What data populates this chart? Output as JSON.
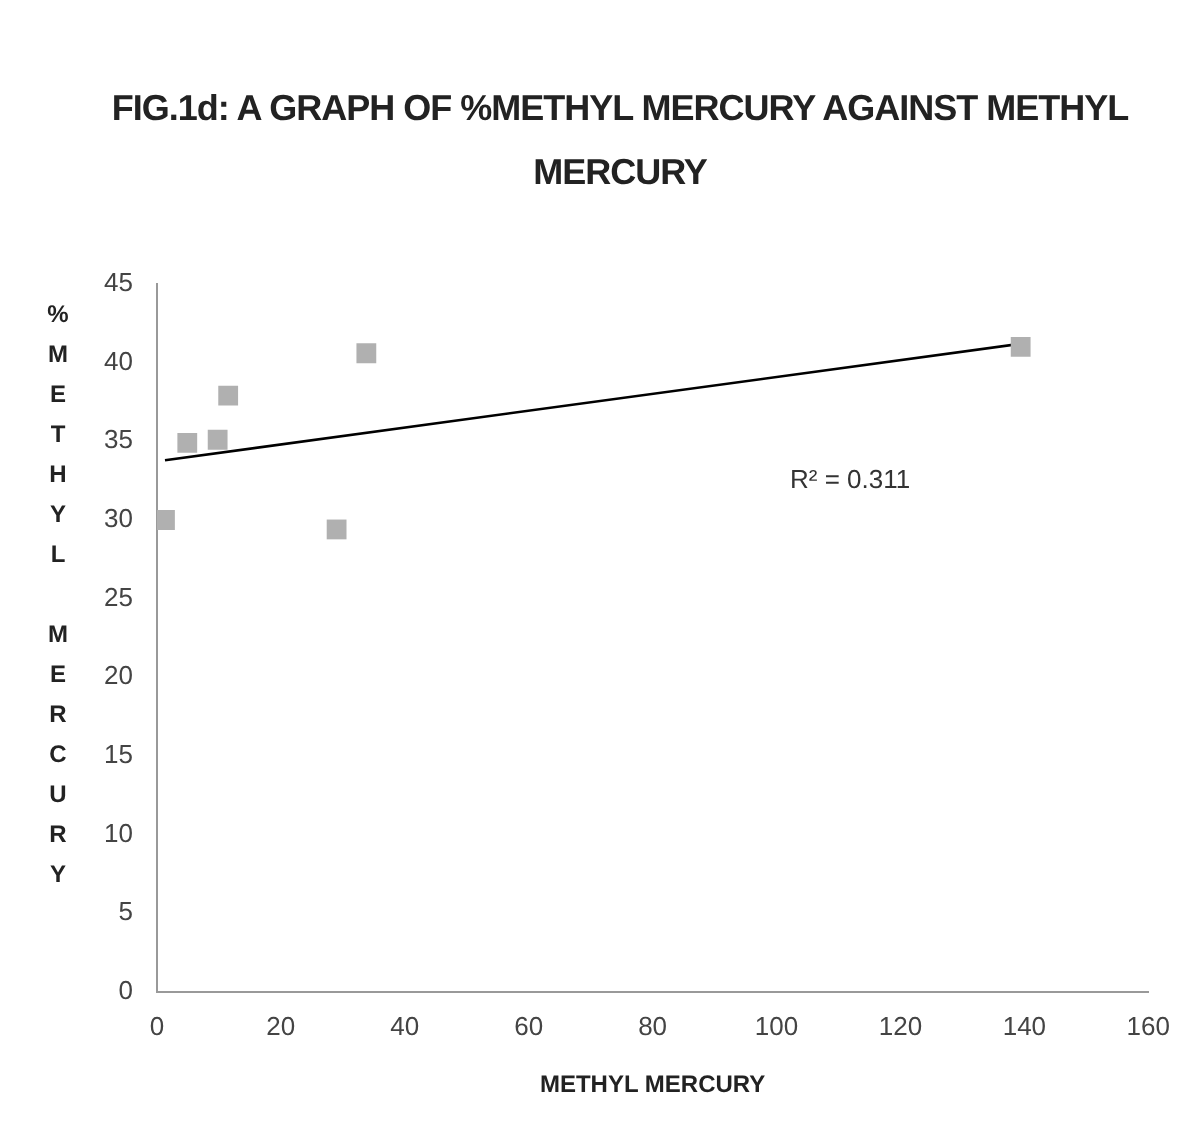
{
  "chart_data": {
    "type": "scatter",
    "title": "FIG.1d: A GRAPH OF %METHYL MERCURY  AGAINST METHYL MERCURY",
    "xlabel": "METHYL MERCURY",
    "ylabel": "%METHYL MERCURY",
    "series": [
      {
        "marker": "square",
        "color": "#b0b0b0",
        "x": [
          1.3,
          4.9,
          9.8,
          11.5,
          29,
          33.8,
          139.4
        ],
        "values": [
          30,
          34.9,
          35.1,
          37.9,
          29.4,
          40.6,
          41
        ]
      },
      {
        "type": "line",
        "color": "#000000",
        "x": [
          1.3,
          139.4
        ],
        "values": [
          33.8,
          41.2
        ]
      }
    ],
    "grid": false,
    "legend": false,
    "xlim": [
      0,
      160
    ],
    "xticks": [
      0,
      20,
      40,
      60,
      80,
      100,
      120,
      140,
      160
    ],
    "ylim": [
      0,
      45
    ],
    "yticks": [
      0,
      5,
      10,
      15,
      20,
      25,
      30,
      35,
      40,
      45
    ],
    "annotations": [
      "R² = 0.311"
    ]
  }
}
